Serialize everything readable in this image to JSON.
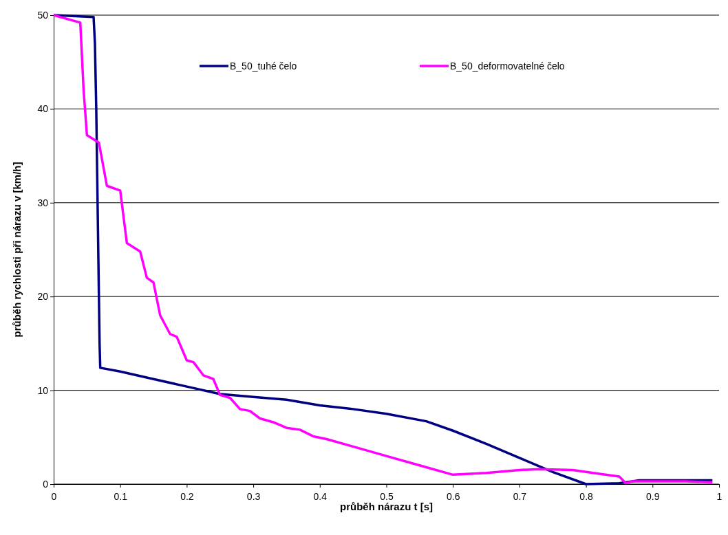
{
  "chart_data": {
    "type": "line",
    "xlabel": "průběh nárazu t [s]",
    "ylabel": "průběh rychlosti při nárazu v [km/h]",
    "xlim": [
      0,
      1
    ],
    "xticks": [
      0,
      0.1,
      0.2,
      0.3,
      0.4,
      0.5,
      0.6,
      0.7,
      0.8,
      0.9,
      1
    ],
    "ylim": [
      0,
      50
    ],
    "yticks": [
      0,
      10,
      20,
      30,
      40,
      50
    ],
    "grid": "y",
    "legend": "top",
    "marker": "none",
    "line_style": "solid",
    "series": [
      {
        "name": "B_50_tuhé čelo",
        "color": "#000080",
        "x": [
          0,
          0.06,
          0.062,
          0.064,
          0.066,
          0.068,
          0.069,
          0.07,
          0.1,
          0.15,
          0.2,
          0.25,
          0.3,
          0.35,
          0.4,
          0.45,
          0.5,
          0.56,
          0.6,
          0.65,
          0.7,
          0.75,
          0.8,
          0.85,
          0.88,
          0.99
        ],
        "values": [
          50,
          49.8,
          47,
          40,
          30,
          20,
          15,
          12.4,
          12,
          11.2,
          10.4,
          9.6,
          9.3,
          9,
          8.4,
          8,
          7.5,
          6.7,
          5.7,
          4.3,
          2.8,
          1.3,
          0,
          0.1,
          0.4,
          0.4
        ]
      },
      {
        "name": "B_50_deformovatelné čelo",
        "color": "#ff00ff",
        "x": [
          0,
          0.04,
          0.045,
          0.05,
          0.068,
          0.08,
          0.1,
          0.11,
          0.13,
          0.14,
          0.15,
          0.16,
          0.175,
          0.185,
          0.2,
          0.21,
          0.225,
          0.24,
          0.25,
          0.265,
          0.28,
          0.295,
          0.31,
          0.33,
          0.35,
          0.37,
          0.39,
          0.41,
          0.45,
          0.5,
          0.55,
          0.6,
          0.65,
          0.7,
          0.73,
          0.78,
          0.82,
          0.85,
          0.86,
          0.87,
          0.95,
          0.99
        ],
        "values": [
          50,
          49.2,
          42,
          37.2,
          36.4,
          31.8,
          31.3,
          25.7,
          24.8,
          22,
          21.5,
          18,
          16,
          15.7,
          13.2,
          13,
          11.6,
          11.2,
          9.5,
          9.2,
          8,
          7.8,
          7,
          6.6,
          6,
          5.8,
          5.1,
          4.8,
          4,
          3,
          2,
          1,
          1.2,
          1.5,
          1.6,
          1.5,
          1.1,
          0.8,
          0.1,
          0.3,
          0.3,
          0.2
        ]
      }
    ]
  }
}
